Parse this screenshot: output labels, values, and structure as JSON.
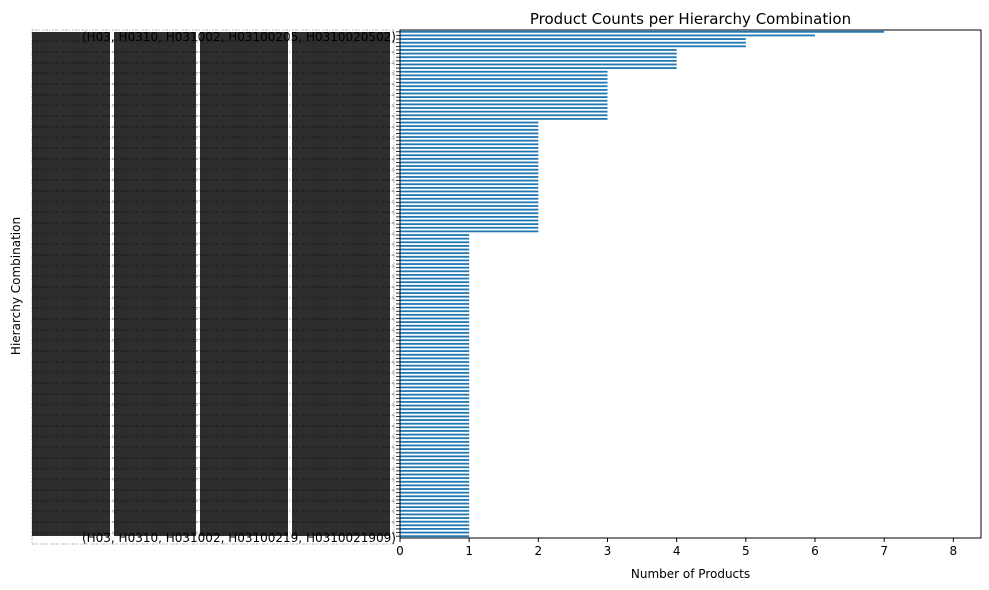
{
  "chart_data": {
    "type": "bar",
    "orientation": "horizontal",
    "title": "Product Counts per Hierarchy Combination",
    "xlabel": "Number of Products",
    "ylabel": "Hierarchy Combination",
    "xlim": [
      0,
      8.4
    ],
    "xticks": [
      0,
      1,
      2,
      3,
      4,
      5,
      6,
      7,
      8
    ],
    "grid": false,
    "legend": "none",
    "color": "#1f77b4",
    "category_labels_note": "overlapping, illegible; only partial text visible",
    "visible_label_fragments": [
      "(H03, H0310, H031002, H03100205, H0310020502)",
      "(H03, H0310, H031002, H03100219, H0310021909)"
    ],
    "bar_count": 140,
    "values": [
      7,
      6,
      5,
      5,
      5,
      4,
      4,
      4,
      4,
      4,
      4,
      3,
      3,
      3,
      3,
      3,
      3,
      3,
      3,
      3,
      3,
      3,
      3,
      3,
      3,
      2,
      2,
      2,
      2,
      2,
      2,
      2,
      2,
      2,
      2,
      2,
      2,
      2,
      2,
      2,
      2,
      2,
      2,
      2,
      2,
      2,
      2,
      2,
      2,
      2,
      2,
      2,
      2,
      2,
      2,
      2,
      1,
      1,
      1,
      1,
      1,
      1,
      1,
      1,
      1,
      1,
      1,
      1,
      1,
      1,
      1,
      1,
      1,
      1,
      1,
      1,
      1,
      1,
      1,
      1,
      1,
      1,
      1,
      1,
      1,
      1,
      1,
      1,
      1,
      1,
      1,
      1,
      1,
      1,
      1,
      1,
      1,
      1,
      1,
      1,
      1,
      1,
      1,
      1,
      1,
      1,
      1,
      1,
      1,
      1,
      1,
      1,
      1,
      1,
      1,
      1,
      1,
      1,
      1,
      1,
      1,
      1,
      1,
      1,
      1,
      1,
      1,
      1,
      1,
      1,
      1,
      1,
      1,
      1,
      1,
      1,
      1,
      1,
      1,
      1
    ]
  }
}
